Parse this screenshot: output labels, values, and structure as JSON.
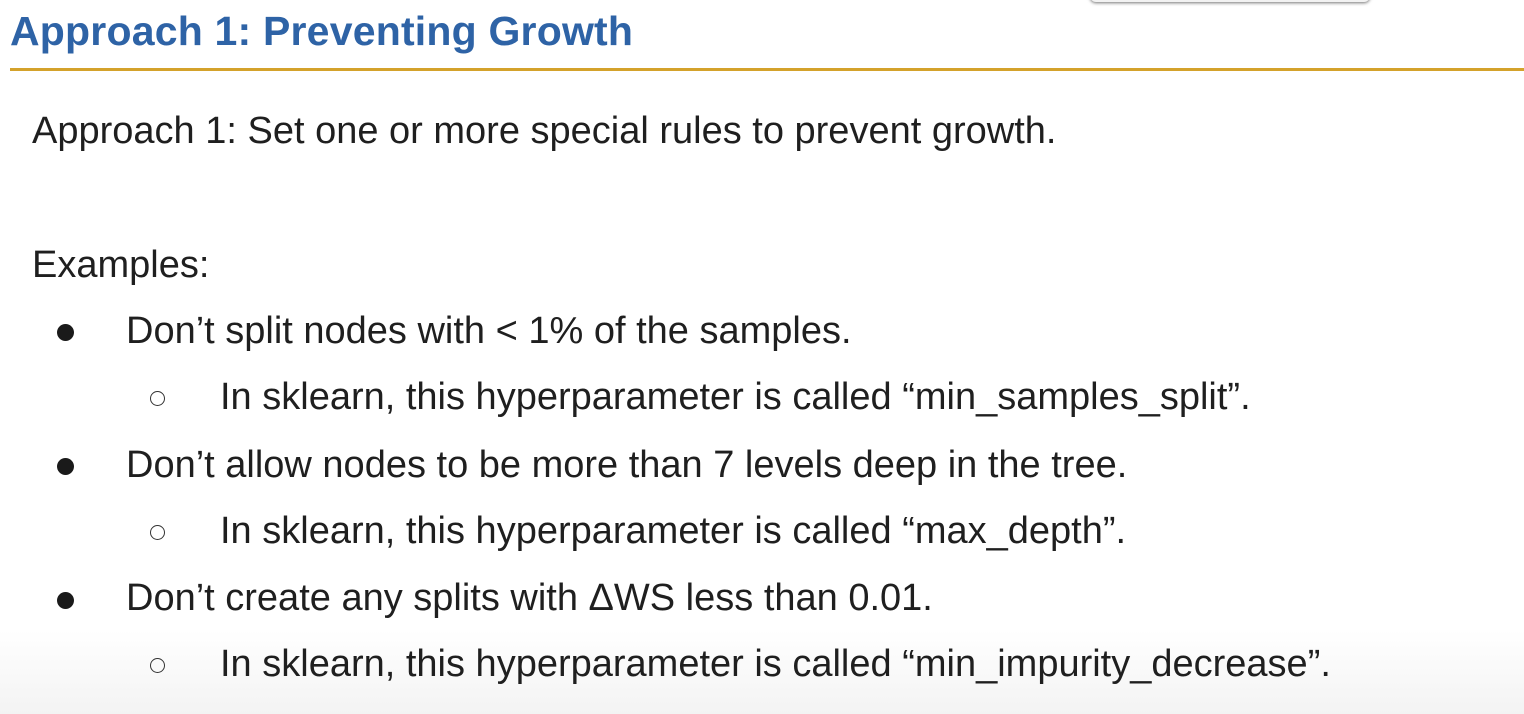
{
  "slide": {
    "title": "Approach 1: Preventing Growth",
    "lead": "Approach 1: Set one or more special rules to prevent growth.",
    "examples_label": "Examples:",
    "items": [
      {
        "text": "Don’t split nodes with < 1% of the samples.",
        "sub": "In sklearn, this hyperparameter is called “min_samples_split”."
      },
      {
        "text": "Don’t allow nodes to be more than 7 levels deep in the tree.",
        "sub": "In sklearn, this hyperparameter is called “max_depth”."
      },
      {
        "text": "Don’t create any splits with ΔWS less than 0.01.",
        "sub": "In sklearn, this hyperparameter is called “min_impurity_decrease”."
      }
    ]
  },
  "colors": {
    "title": "#2e63a6",
    "rule": "#d4a22b",
    "text": "#1f1f1f"
  }
}
